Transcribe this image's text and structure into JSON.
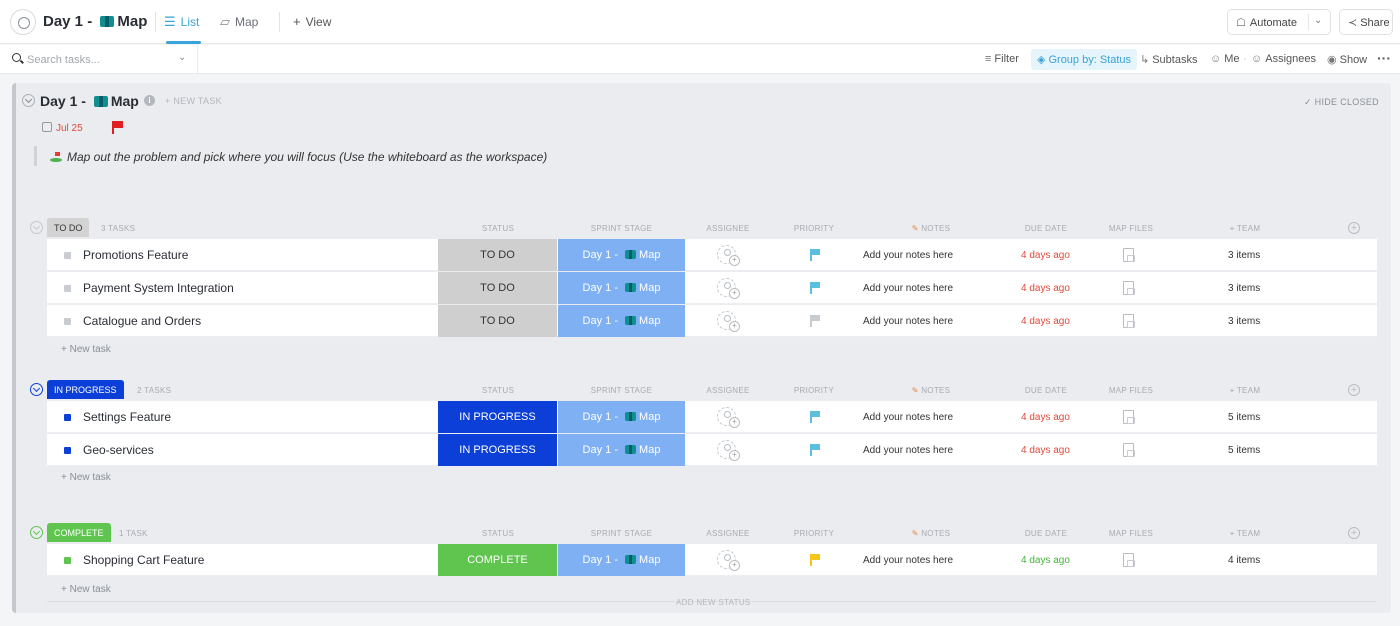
{
  "header": {
    "title_prefix": "Day 1 - ",
    "title_suffix": "Map",
    "tabs": {
      "list": "List",
      "map": "Map",
      "view": "View"
    },
    "automate_label": "Automate",
    "share_label": "Share"
  },
  "toolbar": {
    "search_placeholder": "Search tasks...",
    "filter": "Filter",
    "group_by": "Group by: Status",
    "subtasks": "Subtasks",
    "me": "Me",
    "assignees": "Assignees",
    "show": "Show"
  },
  "list": {
    "title_prefix": "Day 1 - ",
    "title_suffix": "Map",
    "new_task": "+ NEW TASK",
    "hide_closed": "HIDE CLOSED",
    "date": "Jul 25",
    "description": "Map out the problem and pick where you will focus (Use the whiteboard as the workspace)"
  },
  "columns": {
    "status": "STATUS",
    "sprint_stage": "SPRINT STAGE",
    "assignee": "ASSIGNEE",
    "priority": "PRIORITY",
    "notes": "NOTES",
    "due_date": "DUE DATE",
    "map_files": "MAP FILES",
    "team": "TEAM"
  },
  "sprint_label_prefix": "Day 1 - ",
  "sprint_label_suffix": "Map",
  "notes_placeholder": "Add your notes here",
  "new_task_label": "+ New task",
  "add_new_status": "ADD NEW STATUS",
  "groups": [
    {
      "label": "TO DO",
      "count": "3 TASKS",
      "color": "#d3d3d3",
      "text_color": "#333333",
      "tasks": [
        {
          "name": "Promotions Feature",
          "status": "TO DO",
          "priority_color": "#5bc0de",
          "due": "4 days ago",
          "due_color": "#e04a3b",
          "team": "3 items"
        },
        {
          "name": "Payment System Integration",
          "status": "TO DO",
          "priority_color": "#5bc0de",
          "due": "4 days ago",
          "due_color": "#e04a3b",
          "team": "3 items"
        },
        {
          "name": "Catalogue and Orders",
          "status": "TO DO",
          "priority_color": "#c8ccd1",
          "due": "4 days ago",
          "due_color": "#e04a3b",
          "team": "3 items"
        }
      ]
    },
    {
      "label": "IN PROGRESS",
      "count": "2 TASKS",
      "color": "#0b3fd8",
      "text_color": "#ffffff",
      "tasks": [
        {
          "name": "Settings Feature",
          "status": "IN PROGRESS",
          "priority_color": "#5bc0de",
          "due": "4 days ago",
          "due_color": "#e04a3b",
          "team": "5 items"
        },
        {
          "name": "Geo-services",
          "status": "IN PROGRESS",
          "priority_color": "#5bc0de",
          "due": "4 days ago",
          "due_color": "#e04a3b",
          "team": "5 items"
        }
      ]
    },
    {
      "label": "COMPLETE",
      "count": "1 TASK",
      "color": "#5fc54e",
      "text_color": "#ffffff",
      "tasks": [
        {
          "name": "Shopping Cart Feature",
          "status": "COMPLETE",
          "priority_color": "#f5c518",
          "due": "4 days ago",
          "due_color": "#45b53a",
          "team": "4 items"
        }
      ]
    }
  ]
}
